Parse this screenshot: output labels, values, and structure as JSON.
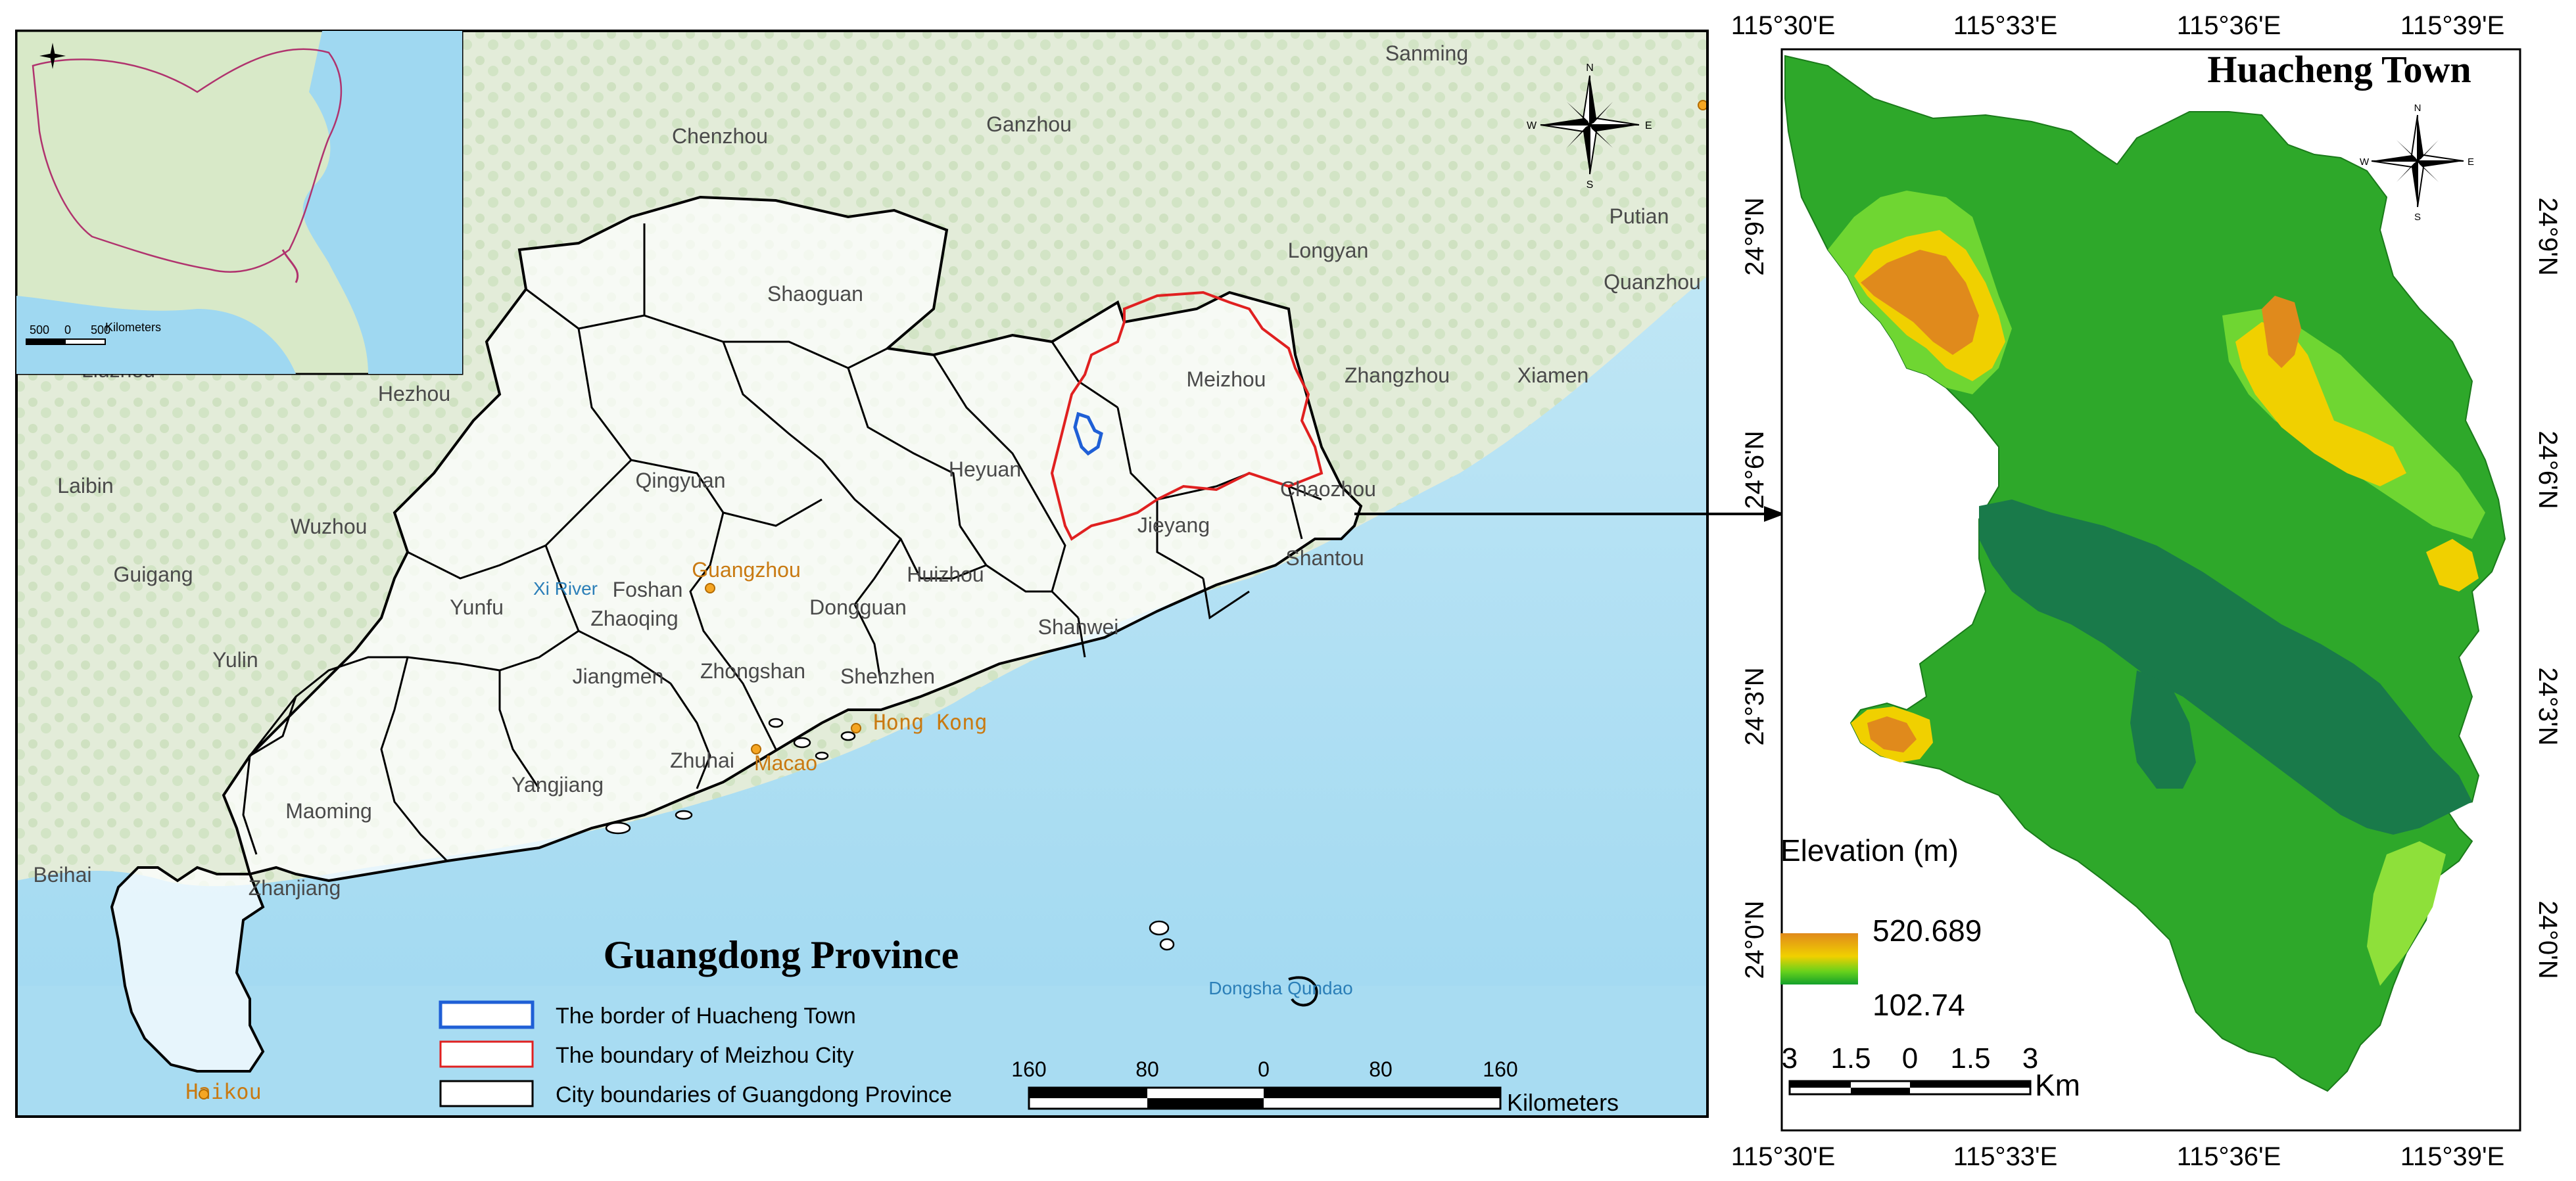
{
  "left_map": {
    "title": "Guangdong Province",
    "cities": [
      {
        "name": "Ganzhou"
      },
      {
        "name": "Sanming"
      },
      {
        "name": "Chenzhou"
      },
      {
        "name": "Shaoguan"
      },
      {
        "name": "Longyan"
      },
      {
        "name": "Putian"
      },
      {
        "name": "Quanzhou"
      },
      {
        "name": "Meizhou"
      },
      {
        "name": "Zhangzhou"
      },
      {
        "name": "Xiamen"
      },
      {
        "name": "Hezhou"
      },
      {
        "name": "Qingyuan"
      },
      {
        "name": "Heyuan"
      },
      {
        "name": "Chaozhou"
      },
      {
        "name": "Laibin"
      },
      {
        "name": "Wuzhou"
      },
      {
        "name": "Jieyang"
      },
      {
        "name": "Guigang"
      },
      {
        "name": "Yunfu"
      },
      {
        "name": "Foshan"
      },
      {
        "name": "Guangzhou"
      },
      {
        "name": "Huizhou"
      },
      {
        "name": "Shantou"
      },
      {
        "name": "Zhaoqing"
      },
      {
        "name": "Dongguan"
      },
      {
        "name": "Shanwei"
      },
      {
        "name": "Yulin"
      },
      {
        "name": "Jiangmen"
      },
      {
        "name": "Zhongshan"
      },
      {
        "name": "Shenzhen"
      },
      {
        "name": "Hong Kong"
      },
      {
        "name": "Zhuhai"
      },
      {
        "name": "Macao"
      },
      {
        "name": "Yangjiang"
      },
      {
        "name": "Maoming"
      },
      {
        "name": "Zhanjiang"
      },
      {
        "name": "Beihai"
      },
      {
        "name": "Haikou"
      },
      {
        "name": "Dongsha Qundao"
      },
      {
        "name": "Xi River"
      },
      {
        "name": "Liuzhou"
      }
    ],
    "legend": [
      {
        "label": "The border of Huacheng Town",
        "color": "#1f5fd6"
      },
      {
        "label": "The boundary of Meizhou City",
        "color": "#e02020"
      },
      {
        "label": "City boundaries of Guangdong Province",
        "color": "#000000"
      }
    ],
    "scale": {
      "ticks": [
        "160",
        "80",
        "0",
        "80",
        "160"
      ],
      "unit": "Kilometers"
    },
    "compass": {
      "n": "N",
      "e": "E",
      "w": "W",
      "s": "S"
    }
  },
  "inset": {
    "scale_ticks": [
      "500",
      "0",
      "500"
    ],
    "unit": "Kilometers"
  },
  "right_map": {
    "title": "Huacheng Town",
    "lon_ticks": [
      "115°30'E",
      "115°33'E",
      "115°36'E",
      "115°39'E"
    ],
    "lat_ticks": [
      "24°9'N",
      "24°6'N",
      "24°3'N",
      "24°0'N"
    ],
    "elevation_title": "Elevation (m)",
    "elevation_max": "520.689",
    "elevation_min": "102.74",
    "scale": {
      "ticks": [
        "3",
        "1.5",
        "0",
        "1.5",
        "3"
      ],
      "unit": "Km"
    },
    "compass": {
      "n": "N",
      "e": "E",
      "w": "W",
      "s": "S"
    },
    "colors": {
      "low": "#1fa01f",
      "mid": "#e6e600",
      "high": "#e08a1c",
      "river": "#197a4a"
    }
  }
}
